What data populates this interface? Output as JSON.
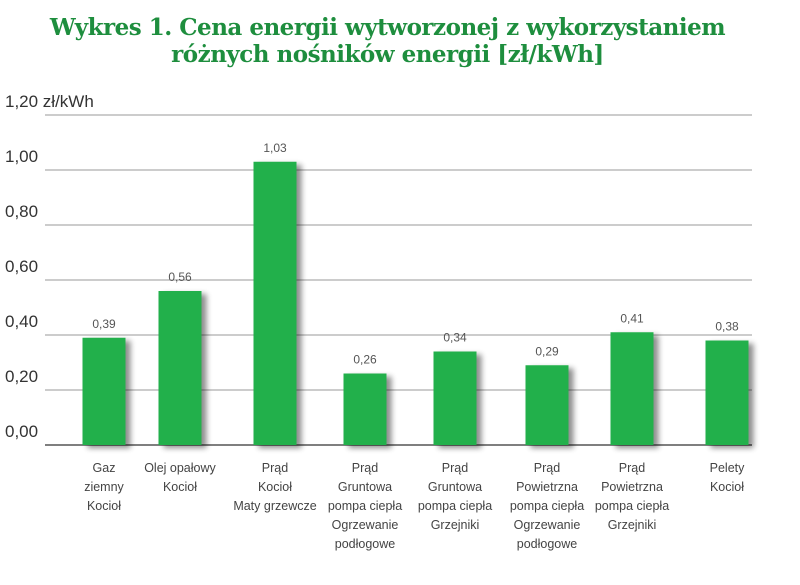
{
  "chart_data": {
    "type": "bar",
    "title": "Wykres 1. Cena energii wytworzonej z wykorzystaniem różnych nośników energii [zł/kWh]",
    "title_lines": [
      "Wykres 1. Cena energii wytworzonej z wykorzystaniem",
      "różnych nośników energii [zł/kWh]"
    ],
    "ylabel": "zł/kWh",
    "ylim": [
      0,
      1.2
    ],
    "yticks": [
      "0,00",
      "0,20",
      "0,40",
      "0,60",
      "0,80",
      "1,00",
      "1,20 zł/kWh"
    ],
    "grid": true,
    "categories": [
      [
        "Gaz",
        "ziemny",
        "Kocioł"
      ],
      [
        "Olej opałowy",
        "Kocioł"
      ],
      [
        "Prąd",
        "Kocioł",
        "Maty grzewcze"
      ],
      [
        "Prąd",
        "Gruntowa",
        "pompa ciepła",
        "Ogrzewanie",
        "podłogowe"
      ],
      [
        "Prąd",
        "Gruntowa",
        "pompa ciepła",
        "Grzejniki"
      ],
      [
        "Prąd",
        "Powietrzna",
        "pompa ciepła",
        "Ogrzewanie",
        "podłogowe"
      ],
      [
        "Prąd",
        "Powietrzna",
        "pompa ciepła",
        "Grzejniki"
      ],
      [
        "Pelety",
        "Kocioł"
      ]
    ],
    "values": [
      0.39,
      0.56,
      1.03,
      0.26,
      0.34,
      0.29,
      0.41,
      0.38
    ],
    "value_labels": [
      "0,39",
      "0,56",
      "1,03",
      "0,26",
      "0,34",
      "0,29",
      "0,41",
      "0,38"
    ],
    "colors": {
      "bar": "#22b04b",
      "title": "#1e8e3e",
      "grid": "#9a9a9a"
    }
  }
}
